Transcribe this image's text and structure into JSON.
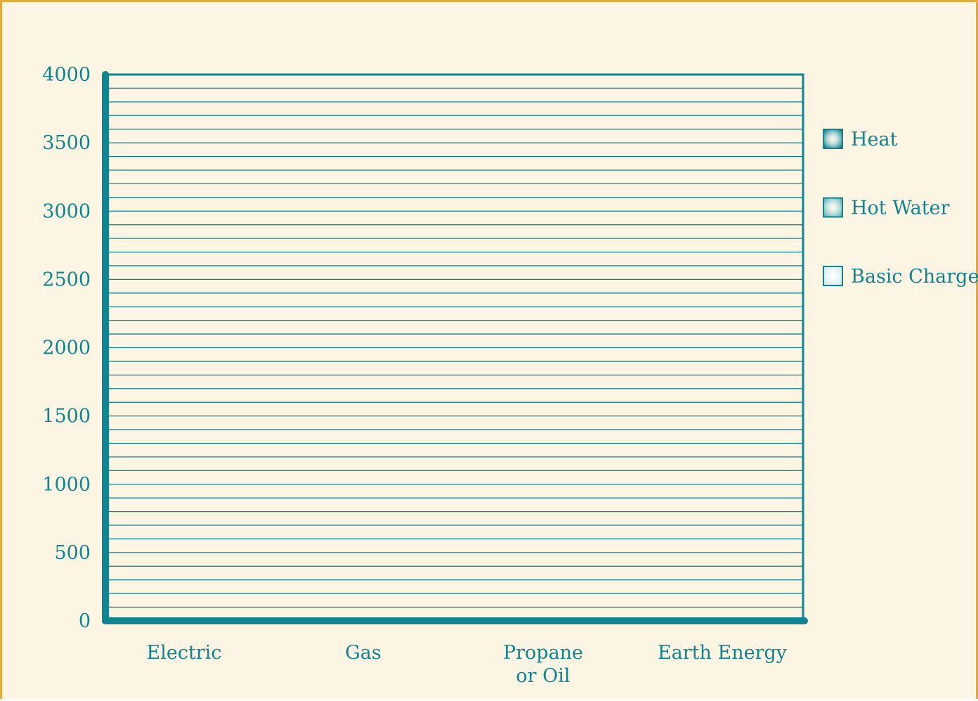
{
  "chart_data": {
    "type": "bar",
    "stacked": true,
    "categories": [
      "Electric",
      "Gas",
      "Propane or Oil",
      "Earth Energy"
    ],
    "category_label_lines": [
      [
        "Electric"
      ],
      [
        "Gas"
      ],
      [
        "Propane",
        "or Oil"
      ],
      [
        "Earth Energy"
      ]
    ],
    "series": [
      {
        "name": "Heat",
        "values": [
          null,
          null,
          null,
          null
        ],
        "color": "#0e8591"
      },
      {
        "name": "Hot Water",
        "values": [
          null,
          null,
          null,
          null
        ],
        "color": "#5fb5bc"
      },
      {
        "name": "Basic Charge",
        "values": [
          null,
          null,
          null,
          null
        ],
        "color": "#d8eef0"
      }
    ],
    "y_ticks": [
      "4000",
      "3500",
      "3000",
      "2500",
      "2000",
      "1500",
      "1000",
      "500",
      "0"
    ],
    "ylim": [
      0,
      4000
    ],
    "minor_grid_step": 100,
    "grid": true,
    "legend_position": "right",
    "title": "",
    "xlabel": "",
    "ylabel": ""
  },
  "colors": {
    "background": "#fcf5e4",
    "border": "#e1ac3c",
    "axis": "#0e8591",
    "grid": "#0e8591"
  }
}
